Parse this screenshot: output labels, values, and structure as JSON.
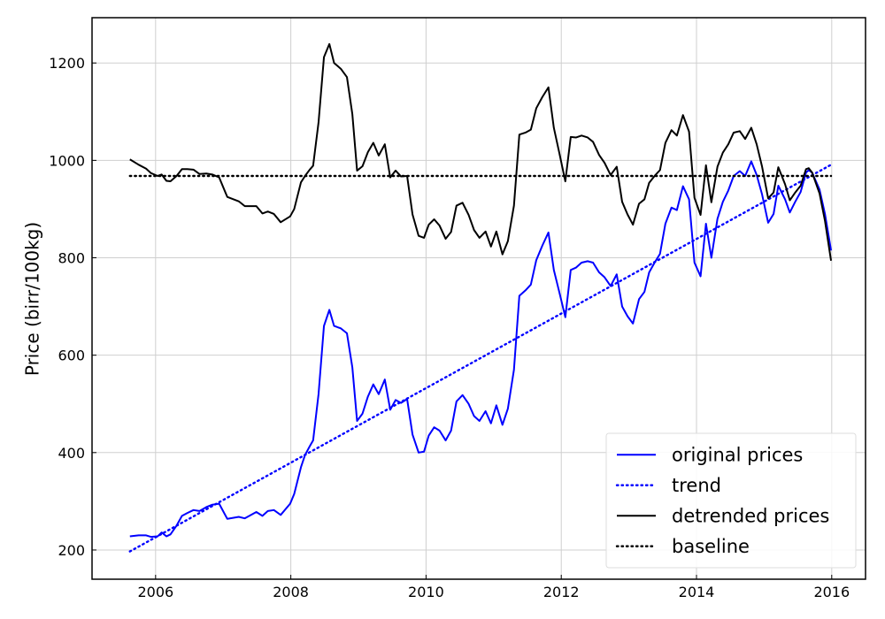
{
  "chart_data": {
    "type": "line",
    "ylabel": "Price (birr/100kg)",
    "xlim": [
      2005.06,
      2016.5
    ],
    "ylim": [
      140,
      1293
    ],
    "xticks": [
      2006,
      2008,
      2010,
      2012,
      2014,
      2016
    ],
    "yticks": [
      200,
      400,
      600,
      800,
      1000,
      1200
    ],
    "grid": true,
    "legend": "lower right",
    "series": [
      {
        "name": "original prices",
        "color": "#0000ff",
        "style": "solid",
        "x": [
          2005.62,
          2005.75,
          2005.86,
          2005.93,
          2006.03,
          2006.09,
          2006.16,
          2006.22,
          2006.31,
          2006.39,
          2006.47,
          2006.56,
          2006.65,
          2006.75,
          2006.84,
          2006.94,
          2007.06,
          2007.23,
          2007.32,
          2007.49,
          2007.58,
          2007.66,
          2007.75,
          2007.85,
          2007.99,
          2008.05,
          2008.15,
          2008.21,
          2008.28,
          2008.33,
          2008.41,
          2008.49,
          2008.57,
          2008.64,
          2008.74,
          2008.83,
          2008.91,
          2008.98,
          2009.06,
          2009.14,
          2009.22,
          2009.3,
          2009.39,
          2009.47,
          2009.55,
          2009.63,
          2009.72,
          2009.8,
          2009.89,
          2009.97,
          2010.04,
          2010.12,
          2010.2,
          2010.29,
          2010.37,
          2010.45,
          2010.54,
          2010.63,
          2010.71,
          2010.79,
          2010.88,
          2010.96,
          2011.04,
          2011.13,
          2011.21,
          2011.3,
          2011.38,
          2011.47,
          2011.55,
          2011.63,
          2011.72,
          2011.81,
          2011.89,
          2011.97,
          2012.06,
          2012.14,
          2012.22,
          2012.3,
          2012.39,
          2012.47,
          2012.56,
          2012.64,
          2012.73,
          2012.82,
          2012.9,
          2012.98,
          2013.06,
          2013.15,
          2013.23,
          2013.3,
          2013.38,
          2013.46,
          2013.54,
          2013.63,
          2013.71,
          2013.8,
          2013.89,
          2013.97,
          2014.06,
          2014.14,
          2014.22,
          2014.31,
          2014.39,
          2014.47,
          2014.55,
          2014.64,
          2014.72,
          2014.81,
          2014.89,
          2014.97,
          2015.06,
          2015.14,
          2015.21,
          2015.31,
          2015.38,
          2015.46,
          2015.54,
          2015.62,
          2015.66,
          2015.71,
          2015.82,
          2015.9,
          2015.99
        ],
        "values": [
          228,
          230,
          230,
          227,
          228,
          236,
          228,
          232,
          250,
          270,
          276,
          282,
          280,
          288,
          293,
          295,
          264,
          268,
          265,
          278,
          270,
          280,
          282,
          272,
          295,
          315,
          370,
          395,
          413,
          425,
          520,
          660,
          693,
          660,
          655,
          645,
          575,
          465,
          480,
          515,
          540,
          520,
          550,
          488,
          508,
          502,
          510,
          437,
          400,
          402,
          435,
          452,
          445,
          425,
          445,
          505,
          518,
          500,
          475,
          465,
          485,
          460,
          497,
          457,
          490,
          570,
          722,
          733,
          745,
          795,
          825,
          852,
          775,
          730,
          678,
          775,
          780,
          790,
          793,
          790,
          770,
          760,
          742,
          766,
          700,
          680,
          665,
          715,
          730,
          770,
          790,
          808,
          870,
          903,
          898,
          947,
          920,
          790,
          762,
          870,
          800,
          880,
          915,
          938,
          968,
          978,
          968,
          998,
          970,
          930,
          872,
          890,
          948,
          920,
          893,
          915,
          935,
          975,
          980,
          975,
          940,
          890,
          815
        ]
      },
      {
        "name": "trend",
        "color": "#0000ff",
        "style": "dotted",
        "x": [
          2005.62,
          2015.99
        ],
        "values": [
          197,
          991
        ]
      },
      {
        "name": "detrended prices",
        "color": "#000000",
        "style": "solid",
        "x": [
          2005.62,
          2005.75,
          2005.86,
          2005.93,
          2006.03,
          2006.09,
          2006.16,
          2006.22,
          2006.31,
          2006.39,
          2006.47,
          2006.56,
          2006.65,
          2006.75,
          2006.84,
          2006.94,
          2007.06,
          2007.23,
          2007.32,
          2007.49,
          2007.58,
          2007.66,
          2007.75,
          2007.85,
          2007.99,
          2008.05,
          2008.15,
          2008.21,
          2008.28,
          2008.33,
          2008.41,
          2008.49,
          2008.57,
          2008.64,
          2008.74,
          2008.83,
          2008.91,
          2008.98,
          2009.06,
          2009.14,
          2009.22,
          2009.3,
          2009.39,
          2009.47,
          2009.55,
          2009.63,
          2009.72,
          2009.8,
          2009.89,
          2009.97,
          2010.04,
          2010.12,
          2010.2,
          2010.29,
          2010.37,
          2010.45,
          2010.54,
          2010.63,
          2010.71,
          2010.79,
          2010.88,
          2010.96,
          2011.04,
          2011.13,
          2011.21,
          2011.3,
          2011.38,
          2011.47,
          2011.55,
          2011.63,
          2011.72,
          2011.81,
          2011.89,
          2011.97,
          2012.06,
          2012.14,
          2012.22,
          2012.3,
          2012.39,
          2012.47,
          2012.56,
          2012.64,
          2012.73,
          2012.82,
          2012.9,
          2012.98,
          2013.06,
          2013.15,
          2013.23,
          2013.3,
          2013.38,
          2013.46,
          2013.54,
          2013.63,
          2013.71,
          2013.8,
          2013.89,
          2013.97,
          2014.06,
          2014.14,
          2014.22,
          2014.31,
          2014.39,
          2014.47,
          2014.55,
          2014.64,
          2014.72,
          2014.81,
          2014.89,
          2014.97,
          2015.06,
          2015.14,
          2015.21,
          2015.31,
          2015.38,
          2015.46,
          2015.54,
          2015.62,
          2015.66,
          2015.71,
          2015.82,
          2015.9,
          2015.99
        ],
        "values": [
          1002,
          991,
          983,
          974,
          968,
          971,
          958,
          957,
          968,
          982,
          982,
          981,
          972,
          973,
          971,
          965,
          925,
          916,
          906,
          906,
          891,
          895,
          890,
          873,
          885,
          900,
          955,
          968,
          981,
          989,
          1078,
          1212,
          1239,
          1200,
          1188,
          1171,
          1095,
          979,
          988,
          1017,
          1036,
          1010,
          1033,
          965,
          979,
          967,
          968,
          889,
          845,
          841,
          868,
          879,
          866,
          839,
          853,
          907,
          913,
          888,
          857,
          841,
          854,
          823,
          854,
          807,
          834,
          907,
          1053,
          1057,
          1063,
          1107,
          1130,
          1150,
          1067,
          1016,
          957,
          1048,
          1047,
          1051,
          1047,
          1038,
          1011,
          995,
          970,
          987,
          915,
          889,
          868,
          911,
          920,
          954,
          968,
          980,
          1036,
          1062,
          1051,
          1093,
          1059,
          923,
          888,
          990,
          914,
          987,
          1016,
          1033,
          1057,
          1060,
          1044,
          1067,
          1033,
          987,
          922,
          934,
          986,
          951,
          918,
          934,
          948,
          982,
          984,
          975,
          932,
          876,
          794
        ]
      },
      {
        "name": "baseline",
        "color": "#000000",
        "style": "dotted",
        "x": [
          2005.62,
          2015.99
        ],
        "values": [
          968,
          968
        ]
      }
    ]
  }
}
